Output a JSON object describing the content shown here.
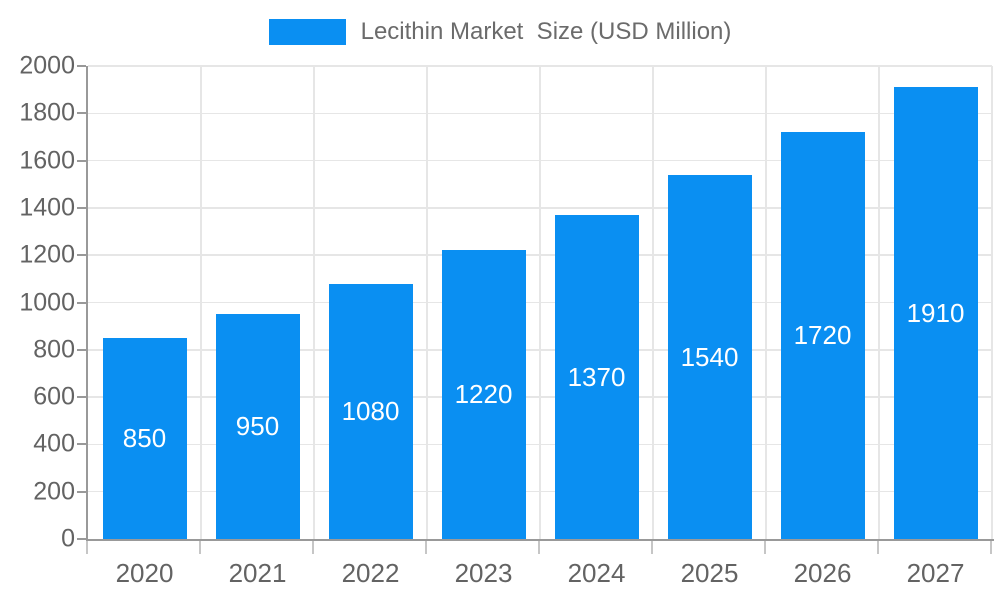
{
  "legend": {
    "label": "Lecithin Market  Size (USD Million)"
  },
  "chart_data": {
    "type": "bar",
    "title": "",
    "categories": [
      "2020",
      "2021",
      "2022",
      "2023",
      "2024",
      "2025",
      "2026",
      "2027"
    ],
    "series": [
      {
        "name": "Lecithin Market Size (USD Million)",
        "values": [
          850,
          950,
          1080,
          1220,
          1370,
          1540,
          1720,
          1910
        ]
      }
    ],
    "value_labels": "inside-center",
    "xlabel": "",
    "ylabel": "",
    "ylim": [
      0,
      2000
    ],
    "ytick_interval": 200,
    "yticks": [
      0,
      200,
      400,
      600,
      800,
      1000,
      1200,
      1400,
      1600,
      1800,
      2000
    ],
    "grid": true,
    "legend_position": "top-center"
  },
  "colors": {
    "bar": "#0a8ff2",
    "axis_line": "#999999",
    "gridline": "#e6e6e6",
    "tick": "#999999",
    "category_tick": "#c6c6c6",
    "axis_text": "#636363",
    "legend_text": "#6b6b6b",
    "value_label_text": "#ffffff",
    "background": "#ffffff"
  }
}
